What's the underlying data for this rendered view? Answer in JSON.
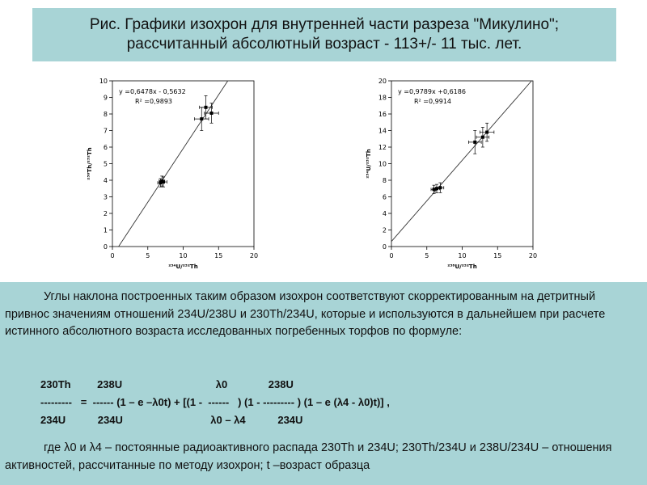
{
  "title": {
    "line1": "Рис. Графики изохрон для внутренней части разреза \"Микулино\";",
    "line2": "рассчитанный абсолютный возраст - 113+/- 11 тыс. лет."
  },
  "chart_data": [
    {
      "type": "scatter",
      "xlabel": "²³⁴U/²³²Th",
      "ylabel": "²³⁰Th/²³²Th",
      "xlim": [
        0,
        20
      ],
      "ylim": [
        0,
        10
      ],
      "xticks": [
        0,
        5,
        10,
        15,
        20
      ],
      "yticks": [
        0,
        1,
        2,
        3,
        4,
        5,
        6,
        7,
        8,
        9,
        10
      ],
      "equation": "y =0,6478x - 0,5632",
      "r2": "R² =0,9893",
      "fit": {
        "slope": 0.6478,
        "intercept": -0.5632
      },
      "points": [
        {
          "x": 6.8,
          "y": 3.85,
          "xerr": 0.4,
          "yerr": 0.25
        },
        {
          "x": 7.0,
          "y": 3.95,
          "xerr": 0.4,
          "yerr": 0.3
        },
        {
          "x": 7.2,
          "y": 3.9,
          "xerr": 0.5,
          "yerr": 0.3
        },
        {
          "x": 12.6,
          "y": 7.7,
          "xerr": 1.0,
          "yerr": 0.7
        },
        {
          "x": 13.2,
          "y": 8.4,
          "xerr": 0.9,
          "yerr": 0.7
        },
        {
          "x": 14.0,
          "y": 8.05,
          "xerr": 1.0,
          "yerr": 0.6
        }
      ]
    },
    {
      "type": "scatter",
      "xlabel": "²³⁸U/²³²Th",
      "ylabel": "²³⁴U/²³²Th",
      "xlim": [
        0,
        20
      ],
      "ylim": [
        0,
        20
      ],
      "xticks": [
        0,
        5,
        10,
        15,
        20
      ],
      "yticks": [
        0,
        2,
        4,
        6,
        8,
        10,
        12,
        14,
        16,
        18,
        20
      ],
      "equation": "y =0,9789x +0,6186",
      "r2": "R² =0,9914",
      "fit": {
        "slope": 0.9789,
        "intercept": 0.6186
      },
      "points": [
        {
          "x": 6.0,
          "y": 6.9,
          "xerr": 0.4,
          "yerr": 0.5
        },
        {
          "x": 6.4,
          "y": 7.0,
          "xerr": 0.4,
          "yerr": 0.5
        },
        {
          "x": 6.9,
          "y": 7.1,
          "xerr": 0.5,
          "yerr": 0.6
        },
        {
          "x": 11.8,
          "y": 12.6,
          "xerr": 0.9,
          "yerr": 1.4
        },
        {
          "x": 12.9,
          "y": 13.2,
          "xerr": 0.9,
          "yerr": 1.2
        },
        {
          "x": 13.5,
          "y": 13.8,
          "xerr": 1.0,
          "yerr": 1.1
        }
      ]
    }
  ],
  "body": {
    "paragraph": "Углы наклона построенных таким образом изохрон соответствуют скорректированным на детритный привнос значениям отношений 234U/238U и 230Th/234U, которые и используются в дальнейшем при расчете истинного абсолютного возраста исследованных погребенных торфов по формуле:",
    "formula_top": "230Th         238U                                λ0              238U",
    "formula_mid": "---------   =  ------ (1 – e –λ0t) + [(1 -  ------   ) (1 - --------- ) (1 – e (λ4 - λ0)t)] ,",
    "formula_bot": "234U           234U                              λ0 – λ4           234U",
    "footer": "где λ0 и λ4 – постоянные радиоактивного распада  230Th и 234U;  230Th/234U и 238U/234U – отношения активностей, рассчитанные по методу изохрон; t –возраст образца"
  }
}
